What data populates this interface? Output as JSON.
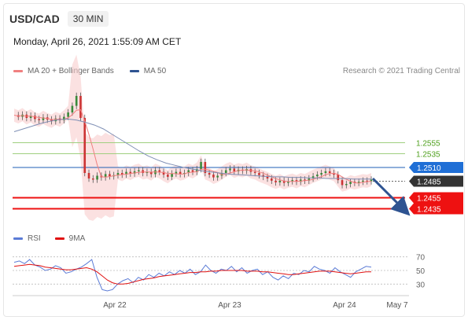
{
  "header": {
    "pair": "USD/CAD",
    "timeframe": "30 MIN",
    "datetime": "Monday, April 26, 2021 1:55:09 AM CET"
  },
  "legend_main": {
    "items": [
      {
        "label": "MA 20 + Bollinger Bands",
        "color": "#f08080"
      },
      {
        "label": "MA 50",
        "color": "#3a5a9a"
      }
    ],
    "credit": "Research © 2021 Trading Central"
  },
  "legend_rsi": {
    "items": [
      {
        "label": "RSI",
        "color": "#5b7bd6"
      },
      {
        "label": "9MA",
        "color": "#e01010"
      }
    ]
  },
  "chart_data": [
    {
      "type": "line",
      "x_labels": [
        "Apr 22",
        "Apr 23",
        "Apr 24",
        "May 7"
      ],
      "levels": [
        {
          "value": 1.2555,
          "label": "1.2555",
          "kind": "resistance",
          "color": "#5aa02c"
        },
        {
          "value": 1.2535,
          "label": "1.2535",
          "kind": "resistance",
          "color": "#5aa02c"
        },
        {
          "value": 1.251,
          "label": "1.2510",
          "kind": "pivot",
          "color": "#1f5fb4"
        },
        {
          "value": 1.2485,
          "label": "1.2485",
          "kind": "last-price",
          "color": "#333333"
        },
        {
          "value": 1.2455,
          "label": "1.2455",
          "kind": "support",
          "color": "#ee1111"
        },
        {
          "value": 1.2435,
          "label": "1.2435",
          "kind": "support",
          "color": "#ee1111"
        }
      ],
      "ylim": [
        1.24,
        1.266
      ],
      "price_series": [
        1.2605,
        1.2602,
        1.2606,
        1.26,
        1.2604,
        1.2598,
        1.2596,
        1.2601,
        1.2597,
        1.2594,
        1.2599,
        1.2596,
        1.2602,
        1.261,
        1.2622,
        1.264,
        1.26,
        1.25,
        1.249,
        1.2488,
        1.2495,
        1.2492,
        1.2498,
        1.2494,
        1.2496,
        1.25,
        1.2497,
        1.2502,
        1.2499,
        1.2503,
        1.2505,
        1.25,
        1.2502,
        1.2498,
        1.2505,
        1.2502,
        1.2497,
        1.2493,
        1.2499,
        1.2502,
        1.2498,
        1.25,
        1.2505,
        1.2502,
        1.2507,
        1.252,
        1.25,
        1.2497,
        1.2492,
        1.2495,
        1.25,
        1.2505,
        1.2508,
        1.2503,
        1.2506,
        1.2504,
        1.2507,
        1.2502,
        1.25,
        1.2496,
        1.2493,
        1.249,
        1.2486,
        1.2483,
        1.2486,
        1.2482,
        1.2485,
        1.2487,
        1.2484,
        1.2488,
        1.2486,
        1.249,
        1.2494,
        1.2497,
        1.25,
        1.2503,
        1.25,
        1.2497,
        1.2487,
        1.2478,
        1.248,
        1.2484,
        1.2482,
        1.2484,
        1.2486,
        1.2485,
        1.2488
      ],
      "ma50": [
        1.2575,
        1.258,
        1.2585,
        1.259,
        1.2594,
        1.2597,
        1.2598,
        1.2596,
        1.2592,
        1.2587,
        1.258,
        1.257,
        1.256,
        1.255,
        1.254,
        1.2531,
        1.2524,
        1.2518,
        1.2514,
        1.251,
        1.2507,
        1.2504,
        1.2502,
        1.25,
        1.2498,
        1.2497,
        1.2496,
        1.2495,
        1.2494,
        1.2493,
        1.2493,
        1.2492,
        1.2492,
        1.2491,
        1.2491,
        1.249,
        1.249,
        1.249,
        1.2489,
        1.2489,
        1.2489
      ],
      "forecast_arrow": {
        "from": 1.249,
        "to": 1.244
      }
    },
    {
      "type": "line",
      "title": "RSI",
      "yticks": [
        70,
        50,
        30
      ],
      "ylim": [
        20,
        80
      ],
      "rsi": [
        62,
        64,
        60,
        66,
        58,
        55,
        50,
        52,
        57,
        54,
        46,
        48,
        52,
        55,
        60,
        66,
        40,
        22,
        20,
        22,
        30,
        35,
        38,
        32,
        40,
        36,
        44,
        40,
        46,
        42,
        48,
        44,
        50,
        46,
        52,
        44,
        48,
        58,
        50,
        46,
        52,
        50,
        56,
        48,
        54,
        46,
        50,
        52,
        44,
        48,
        40,
        36,
        42,
        38,
        46,
        44,
        50,
        48,
        56,
        52,
        50,
        46,
        54,
        48,
        44,
        40,
        48,
        52,
        56,
        55
      ],
      "ma9": [
        56,
        57,
        58,
        59,
        58,
        57,
        55,
        54,
        53,
        52,
        51,
        51,
        52,
        53,
        54,
        52,
        48,
        42,
        36,
        32,
        30,
        30,
        31,
        33,
        35,
        37,
        38,
        39,
        41,
        42,
        43,
        44,
        45,
        46,
        47,
        47,
        48,
        48,
        49,
        49,
        50,
        50,
        50,
        50,
        50,
        49,
        49,
        49,
        48,
        48,
        47,
        46,
        45,
        44,
        44,
        45,
        46,
        47,
        48,
        49,
        49,
        49,
        48,
        47,
        46,
        45,
        46,
        47,
        48,
        48
      ]
    }
  ]
}
